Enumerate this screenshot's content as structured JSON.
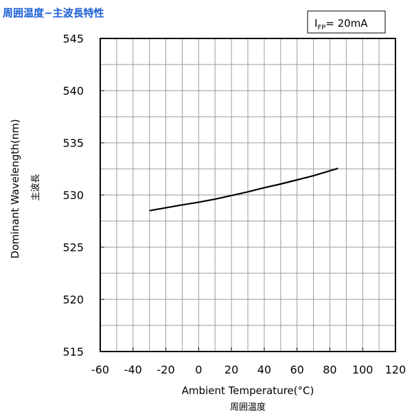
{
  "chart_data": {
    "type": "line",
    "title": "周囲温度−主波長特性",
    "condition": {
      "main": "I",
      "sub": "FP",
      "rest": "= 20mA"
    },
    "xlabel": "Ambient Temperature(°C)",
    "xlabel_jp": "周囲温度",
    "ylabel": "Dominant Wavelength(nm)",
    "ylabel_jp": "主波長",
    "xlim": [
      -60,
      120
    ],
    "ylim": [
      515,
      545
    ],
    "x_ticks": [
      -60,
      -40,
      -20,
      0,
      20,
      40,
      60,
      80,
      100,
      120
    ],
    "y_ticks": [
      515,
      520,
      525,
      530,
      535,
      540,
      545
    ],
    "x_tick_labels": [
      "-60",
      "-40",
      "-20",
      "0",
      "20",
      "40",
      "60",
      "80",
      "100",
      "120"
    ],
    "y_tick_labels": [
      "515",
      "520",
      "525",
      "530",
      "535",
      "540",
      "545"
    ],
    "grid": true,
    "series": [
      {
        "x": [
          -30,
          -10,
          0,
          10,
          20,
          30,
          40,
          50,
          60,
          70,
          85
        ],
        "y": [
          528.5,
          529.05,
          529.3,
          529.6,
          529.95,
          530.3,
          530.7,
          531.05,
          531.45,
          531.85,
          532.55
        ]
      }
    ]
  }
}
